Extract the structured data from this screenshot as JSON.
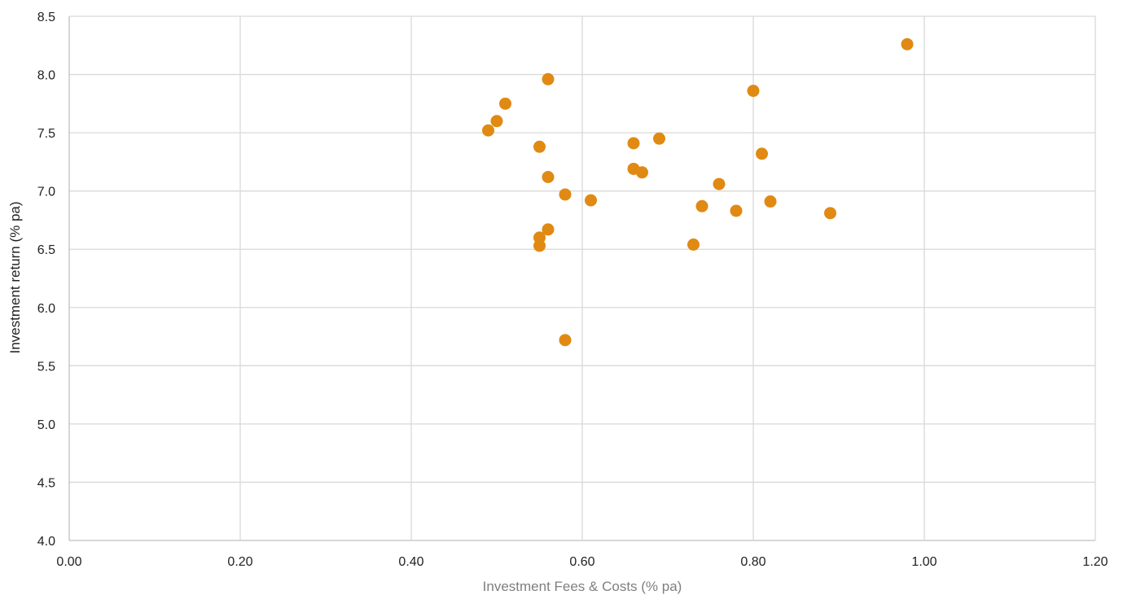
{
  "chart_data": {
    "type": "scatter",
    "title": "",
    "xlabel": "Investment Fees & Costs (% pa)",
    "ylabel": "Investment return (% pa)",
    "xlim": [
      0,
      1.2
    ],
    "ylim": [
      4.0,
      8.5
    ],
    "xticks": [
      "0.00",
      "0.20",
      "0.40",
      "0.60",
      "0.80",
      "1.00",
      "1.20"
    ],
    "yticks": [
      "4.0",
      "4.5",
      "5.0",
      "5.5",
      "6.0",
      "6.5",
      "7.0",
      "7.5",
      "8.0",
      "8.5"
    ],
    "grid": true,
    "legend": "none",
    "series": [
      {
        "color": "#E08A13",
        "points": [
          {
            "x": 0.49,
            "y": 7.52
          },
          {
            "x": 0.5,
            "y": 7.6
          },
          {
            "x": 0.51,
            "y": 7.75
          },
          {
            "x": 0.55,
            "y": 7.38
          },
          {
            "x": 0.55,
            "y": 6.6
          },
          {
            "x": 0.55,
            "y": 6.53
          },
          {
            "x": 0.56,
            "y": 7.96
          },
          {
            "x": 0.56,
            "y": 7.12
          },
          {
            "x": 0.56,
            "y": 6.67
          },
          {
            "x": 0.58,
            "y": 6.97
          },
          {
            "x": 0.58,
            "y": 5.72
          },
          {
            "x": 0.61,
            "y": 6.92
          },
          {
            "x": 0.66,
            "y": 7.41
          },
          {
            "x": 0.66,
            "y": 7.19
          },
          {
            "x": 0.67,
            "y": 7.16
          },
          {
            "x": 0.69,
            "y": 7.45
          },
          {
            "x": 0.73,
            "y": 6.54
          },
          {
            "x": 0.74,
            "y": 6.87
          },
          {
            "x": 0.76,
            "y": 7.06
          },
          {
            "x": 0.78,
            "y": 6.83
          },
          {
            "x": 0.8,
            "y": 7.86
          },
          {
            "x": 0.81,
            "y": 7.32
          },
          {
            "x": 0.82,
            "y": 6.91
          },
          {
            "x": 0.89,
            "y": 6.81
          },
          {
            "x": 0.98,
            "y": 8.26
          }
        ]
      }
    ],
    "colors": {
      "gridline": "#D9D9D9",
      "axisline": "#BFBFBF",
      "tick_text": "#222222",
      "xlabel_text": "#7F7F7F",
      "ylabel_text": "#222222"
    }
  }
}
